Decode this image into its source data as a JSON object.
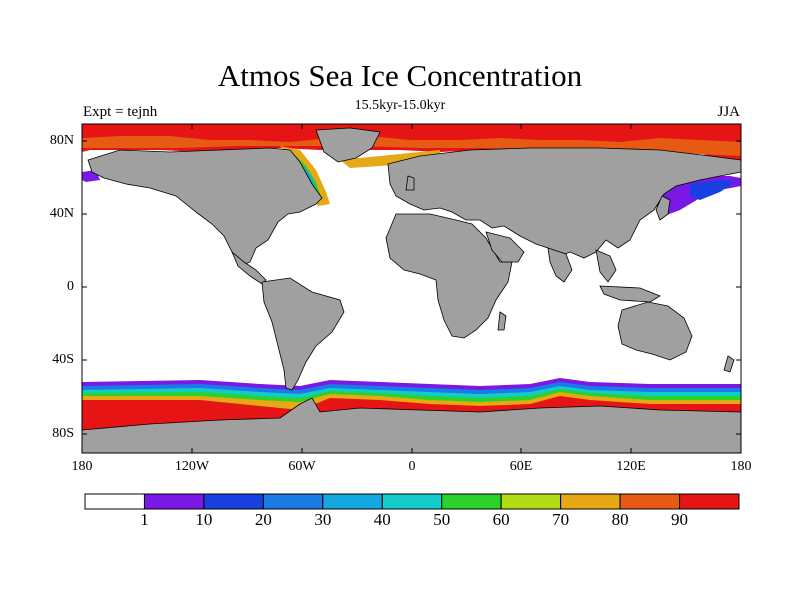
{
  "map": {
    "title": "Atmos Sea Ice Concentration",
    "subtitle": "15.5kyr-15.0kyr",
    "left_label": "Expt = tejnh",
    "right_label": "JJA",
    "lat_labels": [
      "80N",
      "40N",
      "0",
      "40S",
      "80S"
    ],
    "lon_labels": [
      "180",
      "120W",
      "60W",
      "0",
      "60E",
      "120E",
      "180"
    ],
    "land_color": "#a0a0a0",
    "ocean_color": "#ffffff"
  },
  "colorbar": {
    "labels": [
      "1",
      "10",
      "20",
      "30",
      "40",
      "50",
      "60",
      "70",
      "80",
      "90"
    ],
    "colors": [
      "#ffffff",
      "#7a18e6",
      "#1840e0",
      "#1a7ae6",
      "#14a8e0",
      "#12cccc",
      "#2ad22a",
      "#b4dc14",
      "#e6a814",
      "#e65a14",
      "#e61414"
    ]
  }
}
